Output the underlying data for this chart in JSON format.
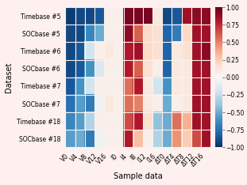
{
  "datasets": [
    "Timebase #5",
    "SOCbase #5",
    "Timebase #6",
    "SOCbase #6",
    "Timebase #7",
    "SOCbase #7",
    "Timebase #18",
    "SOCbase #18"
  ],
  "columns": [
    "V0",
    "V4",
    "V8",
    "V12",
    "V16",
    "I0",
    "I4",
    "I8",
    "I12",
    "I16",
    "ΔT0",
    "ΔT4",
    "ΔT8",
    "ΔT12",
    "ΔT16"
  ],
  "heatmap": [
    [
      -0.95,
      -0.9,
      -0.9,
      -0.85,
      0.05,
      0.05,
      0.95,
      0.95,
      0.95,
      0.1,
      -0.9,
      -0.85,
      0.85,
      0.9,
      0.9
    ],
    [
      -0.9,
      -0.9,
      -0.65,
      -0.5,
      0.05,
      0.05,
      0.9,
      0.6,
      0.2,
      0.15,
      -0.8,
      -0.7,
      0.2,
      0.85,
      0.85
    ],
    [
      -0.9,
      -0.85,
      -0.2,
      0.05,
      0.1,
      0.05,
      0.8,
      0.85,
      0.2,
      0.15,
      -0.8,
      0.1,
      0.15,
      0.85,
      0.9
    ],
    [
      -0.9,
      -0.85,
      -0.6,
      -0.15,
      0.05,
      0.05,
      0.8,
      0.6,
      0.15,
      0.05,
      -0.8,
      0.1,
      0.1,
      0.85,
      0.85
    ],
    [
      -0.85,
      -0.6,
      -0.2,
      0.05,
      0.05,
      0.05,
      0.55,
      0.8,
      0.1,
      -0.2,
      -0.6,
      0.1,
      0.1,
      0.85,
      0.85
    ],
    [
      -0.75,
      -0.55,
      -0.7,
      -0.05,
      0.1,
      0.05,
      0.55,
      0.5,
      0.1,
      0.05,
      -0.5,
      0.05,
      0.1,
      0.85,
      0.85
    ],
    [
      -0.65,
      -0.55,
      -0.3,
      0.05,
      0.05,
      0.05,
      0.65,
      0.8,
      0.15,
      -0.4,
      -0.5,
      0.55,
      0.35,
      0.85,
      0.85
    ],
    [
      -0.55,
      -0.5,
      -0.7,
      -0.05,
      0.05,
      0.05,
      0.8,
      0.3,
      0.05,
      -0.3,
      -0.5,
      0.45,
      0.25,
      0.65,
      0.85
    ]
  ],
  "xlabel": "Sample data",
  "ylabel": "Dataset",
  "vmin": -1.0,
  "vmax": 1.0,
  "colorbar_ticks": [
    1.0,
    0.75,
    0.5,
    0.25,
    0.0,
    -0.25,
    -0.5,
    -0.75,
    -1.0
  ],
  "label_fontsize": 7,
  "tick_fontsize": 5.5,
  "bg_color": "#fdf0ee",
  "grid_color": "#fdf0ee",
  "cbar_bg": "#fdf0ee"
}
